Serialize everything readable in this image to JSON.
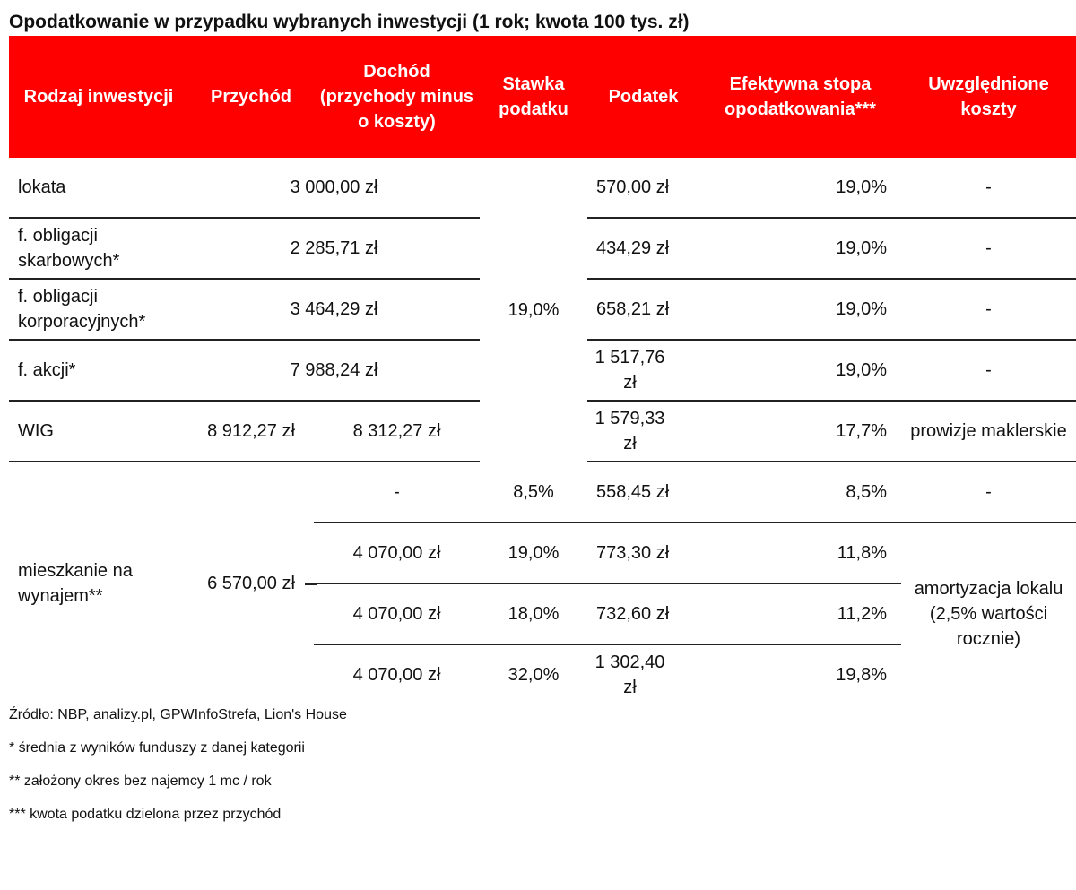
{
  "title": "Opodatkowanie w przypadku wybranych inwestycji (1 rok; kwota 100 tys. zł)",
  "headers": {
    "type": "Rodzaj inwestycji",
    "revenue": "Przychód",
    "income": "Dochód (przychody minus o koszty)",
    "rate": "Stawka podatku",
    "tax": "Podatek",
    "effective": "Efektywna stopa opodatkowania***",
    "costs": "Uwzględnione koszty"
  },
  "rows": {
    "lokata": {
      "name": "lokata",
      "value": "3 000,00 zł",
      "tax": "570,00 zł",
      "effective": "19,0%",
      "costs": "-"
    },
    "skarbowe": {
      "name": "f. obligacji skarbowych*",
      "value": "2 285,71 zł",
      "tax": "434,29 zł",
      "effective": "19,0%",
      "costs": "-"
    },
    "korporacyjne": {
      "name": "f. obligacji korporacyjnych*",
      "value": "3 464,29 zł",
      "tax": "658,21 zł",
      "effective": "19,0%",
      "costs": "-"
    },
    "akcje": {
      "name": "f. akcji*",
      "value": "7 988,24 zł",
      "tax": "1 517,76 zł",
      "effective": "19,0%",
      "costs": "-"
    },
    "wig": {
      "name": "WIG",
      "revenue": "8 912,27 zł",
      "income": "8 312,27 zł",
      "tax": "1 579,33 zł",
      "effective": "17,7%",
      "costs": "prowizje maklerskie"
    },
    "shared_rate": "19,0%",
    "mieszkanie": {
      "name": "mieszkanie na wynajem**",
      "revenue": "6 570,00 zł",
      "costs_first": "-",
      "costs_rest": "amortyzacja lokalu (2,5% wartości rocznie)",
      "subrows": [
        {
          "income": "-",
          "rate": "8,5%",
          "tax": "558,45 zł",
          "effective": "8,5%"
        },
        {
          "income": "4 070,00 zł",
          "rate": "19,0%",
          "tax": "773,30 zł",
          "effective": "11,8%"
        },
        {
          "income": "4 070,00 zł",
          "rate": "18,0%",
          "tax": "732,60 zł",
          "effective": "11,2%"
        },
        {
          "income": "4 070,00 zł",
          "rate": "32,0%",
          "tax": "1 302,40 zł",
          "effective": "19,8%"
        }
      ]
    }
  },
  "notes": {
    "source": "Źródło: NBP, analizy.pl, GPWInfoStrefa, Lion's House",
    "n1": "* średnia z wyników funduszy z danej kategorii",
    "n2": "** założony okres bez najemcy 1 mc / rok",
    "n3": "*** kwota podatku dzielona przez przychód"
  }
}
